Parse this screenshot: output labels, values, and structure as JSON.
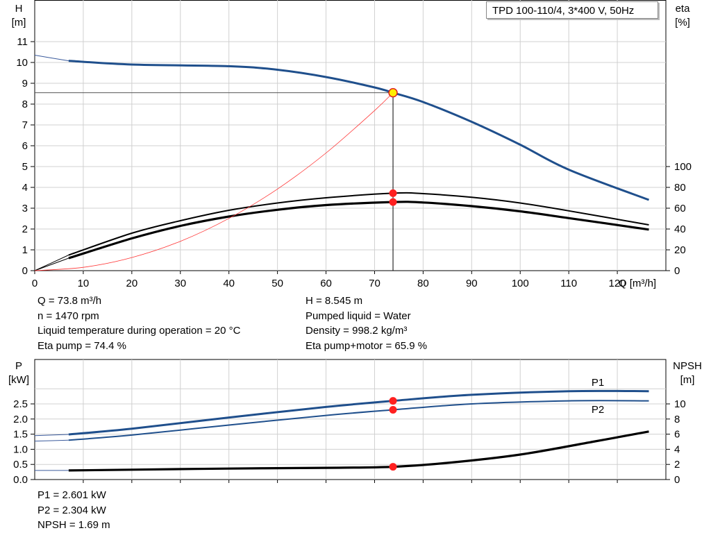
{
  "title": "TPD 100-110/4, 3*400 V, 50Hz",
  "colors": {
    "head": "#1f4f8c",
    "eta": "#000000",
    "system": "#ff3333",
    "op_point": "#ff2020",
    "op_head": "#ffee00",
    "power": "#1f4f8c",
    "npsh": "#000000"
  },
  "info_top_left": [
    "Q = 73.8 m³/h",
    "n = 1470 rpm",
    "Liquid temperature during operation = 20 °C",
    "Eta pump = 74.4 %"
  ],
  "info_top_right": [
    "H = 8.545 m",
    "Pumped liquid = Water",
    "Density = 998.2 kg/m³",
    "Eta pump+motor = 65.9 %"
  ],
  "info_bottom": [
    "P1 = 2.601 kW",
    "P2 = 2.304 kW",
    "NPSH = 1.69 m"
  ],
  "chart_data": [
    {
      "type": "line",
      "xlabel": "Q [m³/h]",
      "ylabel": "H\n[m]",
      "y2label": "eta\n[%]",
      "xlim": [
        0,
        130
      ],
      "ylim": [
        0,
        11
      ],
      "y2lim": [
        0,
        100
      ],
      "x_ticks": [
        "0",
        "10",
        "20",
        "30",
        "40",
        "50",
        "60",
        "70",
        "80",
        "90",
        "100",
        "110",
        "120"
      ],
      "y_ticks": [
        "0",
        "1",
        "2",
        "3",
        "4",
        "5",
        "6",
        "7",
        "8",
        "9",
        "10",
        "11"
      ],
      "y2_ticks": [
        "0",
        "20",
        "40",
        "60",
        "80",
        "100"
      ],
      "grid": true,
      "operating_point": {
        "q": 73.8,
        "h": 8.545
      },
      "series": [
        {
          "key": "head",
          "axis": "y",
          "x": [
            7,
            20,
            40,
            50,
            60,
            70,
            73.8,
            80,
            90,
            100,
            110,
            126.5
          ],
          "values": [
            10.08,
            9.9,
            9.82,
            9.65,
            9.3,
            8.8,
            8.545,
            8.1,
            7.15,
            6.05,
            4.85,
            3.4
          ],
          "extension": {
            "x": [
              0,
              7
            ],
            "values": [
              10.35,
              10.08
            ]
          }
        },
        {
          "key": "eta_motor",
          "axis": "y2",
          "x": [
            7,
            20,
            30,
            40,
            50,
            60,
            73.8,
            80,
            90,
            100,
            110,
            126.5
          ],
          "values": [
            15,
            36,
            48,
            58,
            65,
            70,
            74.4,
            74,
            70.5,
            65,
            57.5,
            44
          ],
          "extension": {
            "x": [
              0,
              7
            ],
            "values": [
              0,
              15
            ]
          }
        },
        {
          "key": "eta_pump",
          "axis": "y2",
          "x": [
            7,
            20,
            30,
            40,
            50,
            60,
            73.8,
            80,
            90,
            100,
            110,
            126.5
          ],
          "values": [
            12,
            31,
            43,
            52,
            58.5,
            63,
            65.9,
            65.5,
            62,
            57,
            50.5,
            39.5
          ],
          "extension": {
            "x": [
              0,
              7
            ],
            "values": [
              0,
              12
            ]
          }
        },
        {
          "key": "system",
          "axis": "y",
          "x": [
            0,
            10,
            20,
            30,
            40,
            50,
            60,
            70,
            73.8
          ],
          "values": [
            0,
            0.16,
            0.63,
            1.41,
            2.51,
            3.92,
            5.65,
            7.69,
            8.545
          ]
        }
      ],
      "marks_y2": [
        74.4,
        65.9
      ]
    },
    {
      "type": "line",
      "ylabel": "P\n[kW]",
      "y2label": "NPSH\n[m]",
      "xlim": [
        0,
        130
      ],
      "ylim": [
        0,
        3.35
      ],
      "y2lim": [
        0,
        11.35
      ],
      "y_ticks": [
        "0.0",
        "0.5",
        "1.0",
        "1.5",
        "2.0",
        "2.5"
      ],
      "y2_ticks": [
        "0",
        "2",
        "4",
        "6",
        "8",
        "10"
      ],
      "grid": true,
      "series": [
        {
          "key": "p1",
          "name": "P1",
          "axis": "y",
          "x": [
            7,
            20,
            40,
            60,
            73.8,
            90,
            110,
            126.5
          ],
          "values": [
            1.49,
            1.68,
            2.05,
            2.4,
            2.601,
            2.8,
            2.92,
            2.92
          ],
          "extension": {
            "x": [
              0,
              7
            ],
            "values": [
              1.45,
              1.49
            ]
          }
        },
        {
          "key": "p2",
          "name": "P2",
          "axis": "y",
          "x": [
            7,
            20,
            40,
            60,
            73.8,
            90,
            110,
            126.5
          ],
          "values": [
            1.3,
            1.47,
            1.8,
            2.12,
            2.304,
            2.5,
            2.6,
            2.6
          ],
          "extension": {
            "x": [
              0,
              7
            ],
            "values": [
              1.27,
              1.3
            ]
          }
        },
        {
          "key": "npsh",
          "axis": "y2",
          "x": [
            7,
            20,
            40,
            60,
            73.8,
            85,
            100,
            115,
            126.5
          ],
          "values": [
            1.2,
            1.3,
            1.45,
            1.55,
            1.69,
            2.2,
            3.3,
            5.0,
            6.35
          ],
          "extension": {
            "x": [
              0,
              7
            ],
            "values": [
              1.2,
              1.2
            ]
          }
        }
      ],
      "marks": [
        {
          "axis": "y",
          "value": 2.601
        },
        {
          "axis": "y",
          "value": 2.304
        },
        {
          "axis": "y2",
          "value": 1.69
        }
      ]
    }
  ]
}
